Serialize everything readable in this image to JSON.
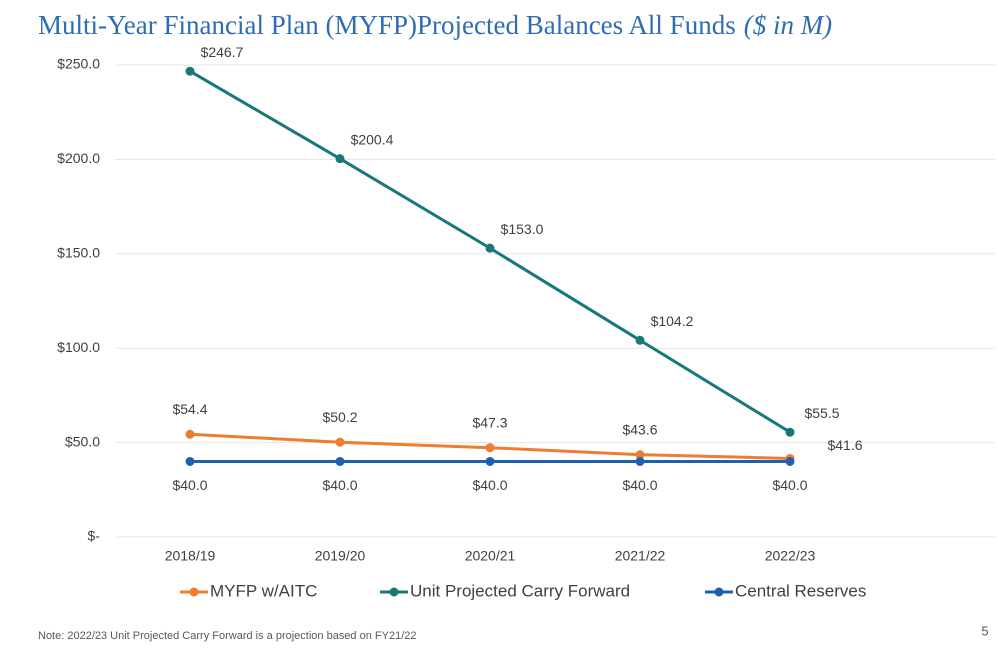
{
  "chart_data": {
    "type": "line",
    "title": "Multi-Year Financial Plan (MYFP)Projected Balances All Funds",
    "title_units": "($ in M)",
    "categories": [
      "2018/19",
      "2019/20",
      "2020/21",
      "2021/22",
      "2022/23"
    ],
    "series": [
      {
        "name": "MYFP w/AITC",
        "color": "#ed7d31",
        "values": [
          54.4,
          50.2,
          47.3,
          43.6,
          41.6
        ],
        "value_labels": [
          "$54.4",
          "$50.2",
          "$47.3",
          "$43.6",
          "$41.6"
        ]
      },
      {
        "name": "Unit Projected Carry Forward",
        "color": "#17787a",
        "values": [
          246.7,
          200.4,
          153.0,
          104.2,
          55.5
        ],
        "value_labels": [
          "$246.7",
          "$200.4",
          "$153.0",
          "$104.2",
          "$55.5"
        ]
      },
      {
        "name": "Central Reserves",
        "color": "#1f5fb0",
        "values": [
          40.0,
          40.0,
          40.0,
          40.0,
          40.0
        ],
        "value_labels": [
          "$40.0",
          "$40.0",
          "$40.0",
          "$40.0",
          "$40.0"
        ]
      }
    ],
    "ylim": [
      0,
      250
    ],
    "yticks": [
      {
        "value": 0,
        "label": "$-"
      },
      {
        "value": 50,
        "label": "$50.0"
      },
      {
        "value": 100,
        "label": "$100.0"
      },
      {
        "value": 150,
        "label": "$150.0"
      },
      {
        "value": 200,
        "label": "$200.0"
      },
      {
        "value": 250,
        "label": "$250.0"
      }
    ],
    "grid": true,
    "legend": "bottom",
    "note": "Note: 2022/23 Unit Projected Carry Forward is a projection based on FY21/22",
    "page_number": "5"
  }
}
